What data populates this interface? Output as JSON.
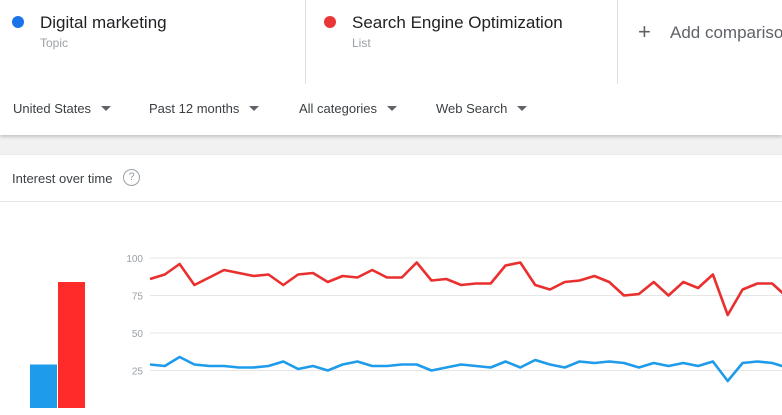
{
  "terms": [
    {
      "name": "Digital marketing",
      "type": "Topic",
      "color": "#1a73e8"
    },
    {
      "name": "Search Engine Optimization",
      "type": "List",
      "color": "#ea3636"
    }
  ],
  "add_comparison": {
    "icon": "plus-icon",
    "label": "Add comparison"
  },
  "filters": {
    "region": "United States",
    "period": "Past 12 months",
    "category": "All categories",
    "property": "Web Search"
  },
  "interest_card": {
    "title": "Interest over time",
    "help_icon": "help-circle-icon"
  },
  "chart_data": {
    "type": "line",
    "yticks": [
      25,
      50,
      75,
      100
    ],
    "ylim": [
      0,
      100
    ],
    "averages": {
      "type": "bar",
      "values": [
        29,
        84
      ],
      "colors": [
        "#1e9bea",
        "#ff2a2a"
      ]
    },
    "series": [
      {
        "name": "Digital marketing",
        "color": "#1e9bea",
        "values": [
          29,
          28,
          34,
          29,
          28,
          28,
          27,
          27,
          28,
          31,
          26,
          28,
          25,
          29,
          31,
          28,
          28,
          29,
          29,
          25,
          27,
          29,
          28,
          27,
          31,
          27,
          32,
          29,
          27,
          31,
          30,
          31,
          30,
          27,
          30,
          28,
          30,
          28,
          31,
          18,
          30,
          31,
          30,
          27
        ]
      },
      {
        "name": "Search Engine Optimization",
        "color": "#ea2f2f",
        "values": [
          86,
          89,
          96,
          82,
          87,
          92,
          90,
          88,
          89,
          82,
          89,
          90,
          84,
          88,
          87,
          92,
          87,
          87,
          97,
          85,
          86,
          82,
          83,
          83,
          95,
          97,
          82,
          79,
          84,
          85,
          88,
          84,
          75,
          76,
          84,
          75,
          84,
          80,
          89,
          62,
          79,
          83,
          83,
          74
        ]
      }
    ]
  }
}
